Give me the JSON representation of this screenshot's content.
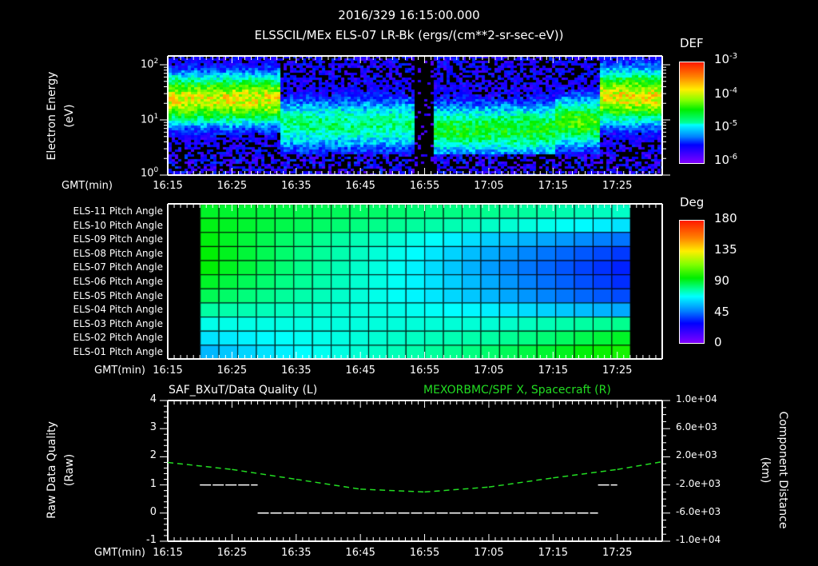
{
  "header": {
    "timestamp": "2016/329 16:15:00.000",
    "title": "ELSSCIL/MEx ELS-07 LR-Bk  (ergs/(cm**2-sr-sec-eV))"
  },
  "time_axis": {
    "label": "GMT(min)",
    "ticks": [
      "16:15",
      "16:25",
      "16:35",
      "16:45",
      "16:55",
      "17:05",
      "17:15",
      "17:25"
    ]
  },
  "panel1": {
    "ylabel": "Electron Energy",
    "yunit": "(eV)",
    "yticks": [
      {
        "base": "10",
        "exp": "2"
      },
      {
        "base": "10",
        "exp": "1"
      },
      {
        "base": "10",
        "exp": "0"
      }
    ],
    "colorbar": {
      "label": "DEF",
      "ticks": [
        {
          "base": "10",
          "exp": "-3"
        },
        {
          "base": "10",
          "exp": "-4"
        },
        {
          "base": "10",
          "exp": "-5"
        },
        {
          "base": "10",
          "exp": "-6"
        }
      ]
    }
  },
  "panel2": {
    "rows": [
      "ELS-11 Pitch Angle",
      "ELS-10 Pitch Angle",
      "ELS-09 Pitch Angle",
      "ELS-08 Pitch Angle",
      "ELS-07 Pitch Angle",
      "ELS-06 Pitch Angle",
      "ELS-05 Pitch Angle",
      "ELS-04 Pitch Angle",
      "ELS-03 Pitch Angle",
      "ELS-02 Pitch Angle",
      "ELS-01 Pitch Angle"
    ],
    "colorbar": {
      "label": "Deg",
      "ticks": [
        "180",
        "135",
        "90",
        "45",
        "0"
      ]
    }
  },
  "panel3": {
    "left_title": "SAF_BXuT/Data Quality (L)",
    "right_title": "MEXORBMC/SPF X, Spacecraft (R)",
    "left_ylabel": "Raw Data Quality",
    "left_yunit": "(Raw)",
    "left_yticks": [
      "4",
      "3",
      "2",
      "1",
      "0",
      "-1"
    ],
    "right_ylabel": "Component Distance",
    "right_yunit": "(km)",
    "right_yticks": [
      "1.0e+04",
      "6.0e+03",
      "2.0e+03",
      "-2.0e+03",
      "-6.0e+03",
      "-1.0e+04"
    ],
    "right_color": "#22dd22"
  },
  "chart_data": [
    {
      "type": "heatmap",
      "title": "ELSSCIL/MEx ELS-07 LR-Bk (ergs/(cm**2-sr-sec-eV))",
      "xlabel": "GMT(min)",
      "ylabel": "Electron Energy (eV)",
      "yscale": "log",
      "ylim": [
        1,
        150
      ],
      "x_ticks": [
        "16:15",
        "16:25",
        "16:35",
        "16:45",
        "16:55",
        "17:05",
        "17:15",
        "17:25"
      ],
      "colorbar": {
        "label": "DEF",
        "scale": "log",
        "range": [
          1e-06,
          0.001
        ]
      },
      "description_segments": [
        {
          "t": "16:15-16:32",
          "peak_energy_eV": [
            15,
            40
          ],
          "peak_DEF": 0.0002
        },
        {
          "t": "16:32-16:53",
          "peak_energy_eV": [
            5,
            15
          ],
          "peak_DEF": 3e-05
        },
        {
          "t": "16:53-16:56",
          "peak_DEF": 1e-06,
          "note": "dropout gap"
        },
        {
          "t": "16:56-17:15",
          "peak_energy_eV": [
            4,
            12
          ],
          "peak_DEF": 5e-05
        },
        {
          "t": "17:15-17:22",
          "peak_energy_eV": [
            6,
            15
          ],
          "peak_DEF": 8e-05
        },
        {
          "t": "17:22-17:33",
          "peak_energy_eV": [
            15,
            50
          ],
          "peak_DEF": 0.0002
        }
      ]
    },
    {
      "type": "heatmap",
      "title": "Pitch Angle",
      "xlabel": "GMT(min)",
      "rows": [
        "ELS-11",
        "ELS-10",
        "ELS-09",
        "ELS-08",
        "ELS-07",
        "ELS-06",
        "ELS-05",
        "ELS-04",
        "ELS-03",
        "ELS-02",
        "ELS-01"
      ],
      "time_start": "16:20",
      "time_end": "17:27",
      "columns": 23,
      "colorbar": {
        "label": "Deg",
        "range": [
          0,
          180
        ]
      },
      "values_start_deg": [
        100,
        102,
        103,
        104,
        104,
        100,
        95,
        85,
        75,
        68,
        62
      ],
      "values_mid_17:05_deg": [
        88,
        80,
        65,
        60,
        58,
        60,
        62,
        70,
        78,
        85,
        92
      ],
      "values_end_deg": [
        80,
        68,
        52,
        42,
        38,
        40,
        45,
        60,
        88,
        100,
        108
      ]
    },
    {
      "type": "line",
      "title": "SAF_BXuT/Data Quality (L) / MEXORBMC/SPF X, Spacecraft (R)",
      "xlabel": "GMT(min)",
      "ylabel_left": "Raw Data Quality (Raw)",
      "ylim_left": [
        -1,
        4
      ],
      "ylabel_right": "Component Distance (km)",
      "ylim_right": [
        -10000,
        10000
      ],
      "series": [
        {
          "name": "Data Quality",
          "axis": "left",
          "color": "#ffffff",
          "points": [
            [
              "16:20",
              1
            ],
            [
              "16:29",
              1
            ],
            [
              "16:29",
              0
            ],
            [
              "17:22",
              0
            ],
            [
              "17:22",
              1
            ],
            [
              "17:25",
              1
            ]
          ]
        },
        {
          "name": "SPF X",
          "axis": "right",
          "color": "#22dd22",
          "style": "dashed",
          "points": [
            [
              "16:15",
              1200
            ],
            [
              "16:25",
              200
            ],
            [
              "16:35",
              -1200
            ],
            [
              "16:45",
              -2600
            ],
            [
              "16:55",
              -3000
            ],
            [
              "17:05",
              -2300
            ],
            [
              "17:15",
              -1000
            ],
            [
              "17:25",
              200
            ],
            [
              "17:32",
              1300
            ]
          ]
        }
      ]
    }
  ]
}
